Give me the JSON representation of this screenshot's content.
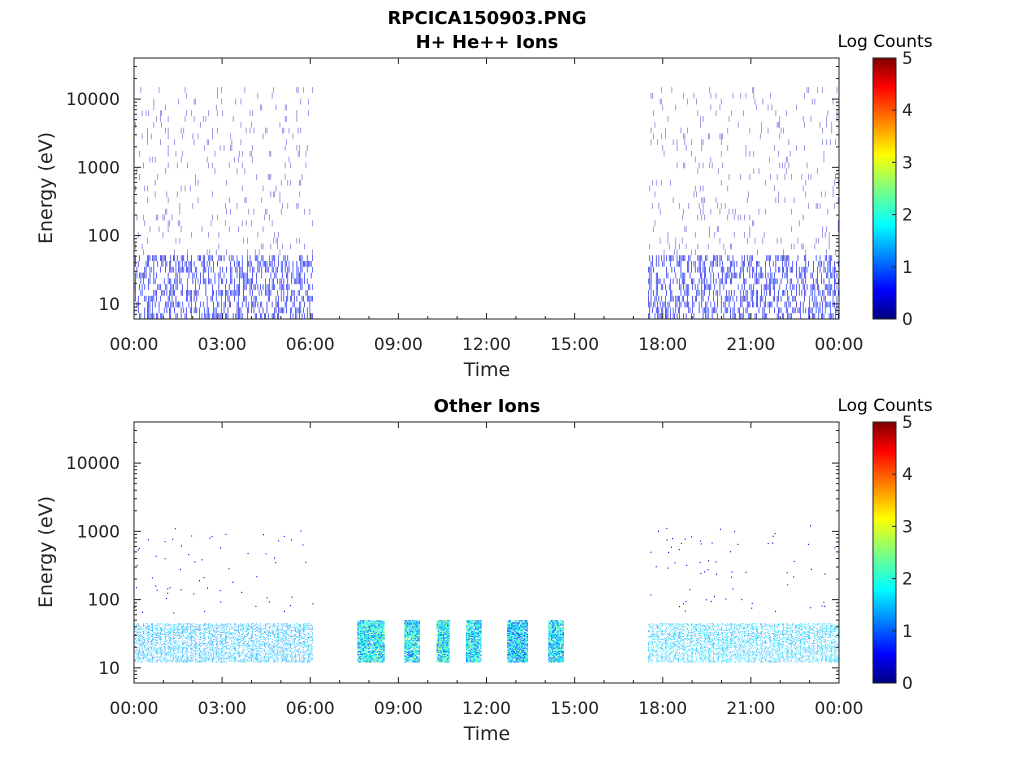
{
  "figure_title": "RPCICA150903.PNG",
  "colorbar_scale": [
    "#00007f",
    "#0000ff",
    "#007fff",
    "#00ffff",
    "#7fff7f",
    "#ffff00",
    "#ff7f00",
    "#ff0000",
    "#7f0000"
  ],
  "chart_data": [
    {
      "type": "heatmap",
      "title": "H+ He++ Ions",
      "xlabel": "Time",
      "ylabel": "Energy (eV)",
      "x_tick_labels": [
        "00:00",
        "03:00",
        "06:00",
        "09:00",
        "12:00",
        "15:00",
        "18:00",
        "21:00",
        "00:00"
      ],
      "x_ticks_hours": [
        0,
        3,
        6,
        9,
        12,
        15,
        18,
        21,
        24
      ],
      "xlim_hours": [
        0,
        24
      ],
      "y_scale": "log",
      "ylim": [
        6,
        40000
      ],
      "y_ticks": [
        10,
        100,
        1000,
        10000
      ],
      "y_tick_labels": [
        "10",
        "100",
        "1000",
        "10000"
      ],
      "colorbar": {
        "label": "Log Counts",
        "ticks": [
          "0",
          "1",
          "2",
          "3",
          "4",
          "5"
        ],
        "range": [
          0,
          5
        ]
      },
      "data_blocks": [
        {
          "t_start_hours": 0.0,
          "t_end_hours": 6.1,
          "e_min_eV": 6,
          "e_max_eV": 15000,
          "log_counts_typical": 0.3
        },
        {
          "t_start_hours": 17.5,
          "t_end_hours": 24.0,
          "e_min_eV": 6,
          "e_max_eV": 15000,
          "log_counts_typical": 0.3
        }
      ]
    },
    {
      "type": "heatmap",
      "title": "Other Ions",
      "xlabel": "Time",
      "ylabel": "Energy (eV)",
      "x_tick_labels": [
        "00:00",
        "03:00",
        "06:00",
        "09:00",
        "12:00",
        "15:00",
        "18:00",
        "21:00",
        "00:00"
      ],
      "x_ticks_hours": [
        0,
        3,
        6,
        9,
        12,
        15,
        18,
        21,
        24
      ],
      "xlim_hours": [
        0,
        24
      ],
      "y_scale": "log",
      "ylim": [
        6,
        40000
      ],
      "y_ticks": [
        10,
        100,
        1000,
        10000
      ],
      "y_tick_labels": [
        "10",
        "100",
        "1000",
        "10000"
      ],
      "colorbar": {
        "label": "Log Counts",
        "ticks": [
          "0",
          "1",
          "2",
          "3",
          "4",
          "5"
        ],
        "range": [
          0,
          5
        ]
      },
      "data_blocks": [
        {
          "t_start_hours": 0.0,
          "t_end_hours": 6.1,
          "e_min_eV": 12,
          "e_max_eV": 45,
          "log_counts_typical": 1.2
        },
        {
          "t_start_hours": 7.6,
          "t_end_hours": 8.5,
          "e_min_eV": 12,
          "e_max_eV": 50,
          "log_counts_typical": 1.8
        },
        {
          "t_start_hours": 9.2,
          "t_end_hours": 9.7,
          "e_min_eV": 12,
          "e_max_eV": 50,
          "log_counts_typical": 1.8
        },
        {
          "t_start_hours": 10.3,
          "t_end_hours": 10.7,
          "e_min_eV": 12,
          "e_max_eV": 50,
          "log_counts_typical": 1.8
        },
        {
          "t_start_hours": 11.3,
          "t_end_hours": 11.8,
          "e_min_eV": 12,
          "e_max_eV": 50,
          "log_counts_typical": 1.8
        },
        {
          "t_start_hours": 12.7,
          "t_end_hours": 13.4,
          "e_min_eV": 12,
          "e_max_eV": 50,
          "log_counts_typical": 1.6
        },
        {
          "t_start_hours": 14.1,
          "t_end_hours": 14.6,
          "e_min_eV": 12,
          "e_max_eV": 50,
          "log_counts_typical": 1.8
        },
        {
          "t_start_hours": 17.5,
          "t_end_hours": 24.0,
          "e_min_eV": 12,
          "e_max_eV": 45,
          "log_counts_typical": 1.3
        }
      ]
    }
  ]
}
